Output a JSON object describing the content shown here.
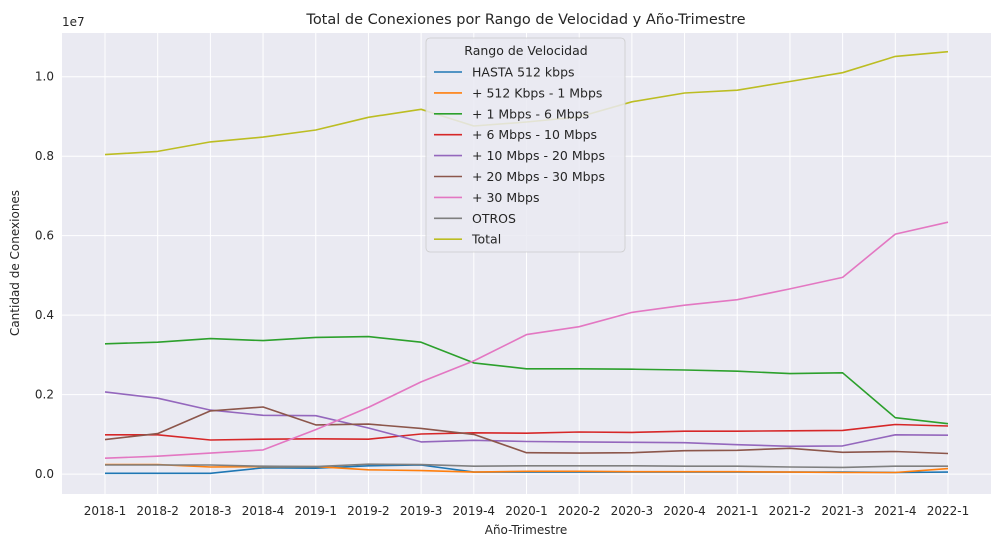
{
  "chart_data": {
    "type": "line",
    "title": "Total de Conexiones por Rango de Velocidad y Año-Trimestre",
    "xlabel": "Año-Trimestre",
    "ylabel": "Cantidad de Conexiones",
    "offset_label": "1e7",
    "ylim": [
      -500000,
      11100000
    ],
    "yticks": [
      0,
      2000000,
      4000000,
      6000000,
      8000000,
      10000000
    ],
    "ytick_labels": [
      "0.0",
      "0.2",
      "0.4",
      "0.6",
      "0.8",
      "1.0"
    ],
    "grid": true,
    "legend": {
      "title": "Rango de Velocidad",
      "placement": "upper center"
    },
    "categories": [
      "2018-1",
      "2018-2",
      "2018-3",
      "2018-4",
      "2019-1",
      "2019-2",
      "2019-3",
      "2019-4",
      "2020-1",
      "2020-2",
      "2020-3",
      "2020-4",
      "2021-1",
      "2021-2",
      "2021-3",
      "2021-4",
      "2022-1"
    ],
    "series": [
      {
        "name": "HASTA 512 kbps",
        "color": "#1f77b4",
        "values": [
          20000,
          20000,
          20000,
          160000,
          150000,
          210000,
          230000,
          50000,
          50000,
          50000,
          50000,
          50000,
          50000,
          50000,
          50000,
          40000,
          50000
        ]
      },
      {
        "name": "+ 512 Kbps - 1 Mbps",
        "color": "#ff7f0e",
        "values": [
          240000,
          240000,
          180000,
          190000,
          190000,
          110000,
          90000,
          50000,
          70000,
          70000,
          60000,
          60000,
          60000,
          50000,
          40000,
          40000,
          140000
        ]
      },
      {
        "name": "+ 1 Mbps - 6 Mbps",
        "color": "#2ca02c",
        "values": [
          3280000,
          3320000,
          3410000,
          3360000,
          3440000,
          3460000,
          3320000,
          2800000,
          2650000,
          2650000,
          2640000,
          2620000,
          2590000,
          2530000,
          2550000,
          1420000,
          1270000
        ]
      },
      {
        "name": "+ 6 Mbps - 10 Mbps",
        "color": "#d62728",
        "values": [
          990000,
          990000,
          860000,
          880000,
          890000,
          880000,
          1010000,
          1040000,
          1030000,
          1060000,
          1050000,
          1080000,
          1080000,
          1090000,
          1100000,
          1250000,
          1210000
        ]
      },
      {
        "name": "+ 10 Mbps - 20 Mbps",
        "color": "#9467bd",
        "values": [
          2070000,
          1910000,
          1610000,
          1480000,
          1470000,
          1160000,
          810000,
          850000,
          820000,
          810000,
          800000,
          790000,
          740000,
          700000,
          710000,
          990000,
          980000
        ]
      },
      {
        "name": "+ 20 Mbps - 30 Mbps",
        "color": "#8c564b",
        "values": [
          870000,
          1020000,
          1590000,
          1690000,
          1240000,
          1260000,
          1150000,
          1000000,
          540000,
          530000,
          540000,
          590000,
          600000,
          650000,
          550000,
          570000,
          520000
        ]
      },
      {
        "name": "+ 30 Mbps",
        "color": "#e377c2",
        "values": [
          400000,
          450000,
          530000,
          610000,
          1120000,
          1680000,
          2320000,
          2850000,
          3510000,
          3710000,
          4070000,
          4250000,
          4390000,
          4660000,
          4950000,
          6040000,
          6340000
        ]
      },
      {
        "name": "OTROS",
        "color": "#7f7f7f",
        "values": [
          230000,
          230000,
          230000,
          200000,
          190000,
          250000,
          240000,
          200000,
          210000,
          210000,
          210000,
          200000,
          200000,
          180000,
          170000,
          200000,
          200000
        ]
      },
      {
        "name": "Total",
        "color": "#bcbd22",
        "values": [
          8040000,
          8120000,
          8360000,
          8480000,
          8660000,
          8980000,
          9180000,
          8760000,
          8860000,
          8990000,
          9370000,
          9590000,
          9660000,
          9880000,
          10100000,
          10510000,
          10630000
        ]
      }
    ]
  }
}
